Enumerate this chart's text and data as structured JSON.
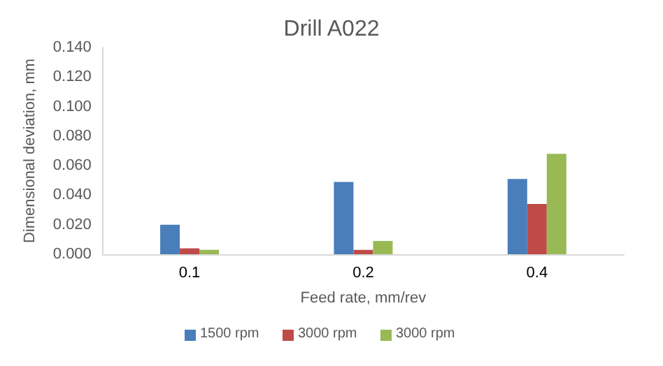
{
  "chart_data": {
    "type": "bar",
    "title": "Drill A022",
    "xlabel": "Feed rate, mm/rev",
    "ylabel": "Dimensional deviation, mm",
    "categories": [
      "0.1",
      "0.2",
      "0.4"
    ],
    "series": [
      {
        "name": "1500 rpm",
        "color": "#4a7ebb",
        "values": [
          0.02,
          0.049,
          0.051
        ]
      },
      {
        "name": "3000 rpm",
        "color": "#be4b48",
        "values": [
          0.004,
          0.003,
          0.034
        ]
      },
      {
        "name": "3000 rpm",
        "color": "#98b954",
        "values": [
          0.003,
          0.009,
          0.068
        ]
      }
    ],
    "ylim": [
      0,
      0.14
    ],
    "yticks": [
      {
        "value": 0,
        "label": "0.000"
      },
      {
        "value": 0.02,
        "label": "0.020"
      },
      {
        "value": 0.04,
        "label": "0.040"
      },
      {
        "value": 0.06,
        "label": "0.060"
      },
      {
        "value": 0.08,
        "label": "0.080"
      },
      {
        "value": 0.1,
        "label": "0.100"
      },
      {
        "value": 0.12,
        "label": "0.120"
      },
      {
        "value": 0.14,
        "label": "0.140"
      }
    ],
    "grid": false,
    "legend": "bottom"
  }
}
